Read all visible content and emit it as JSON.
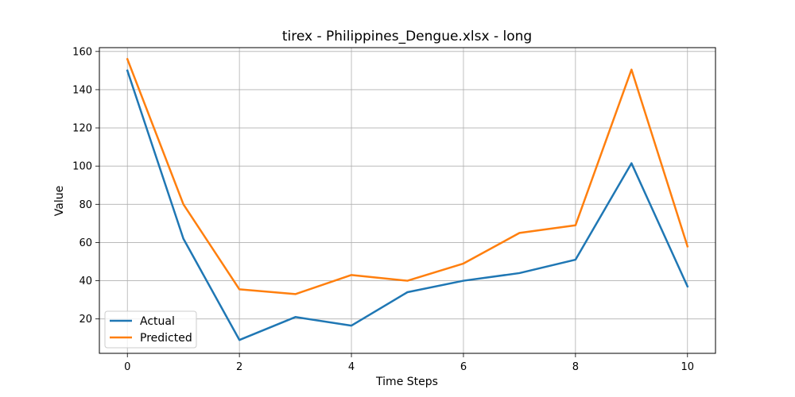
{
  "chart_data": {
    "type": "line",
    "title": "tirex - Philippines_Dengue.xlsx - long",
    "xlabel": "Time Steps",
    "ylabel": "Value",
    "x": [
      0,
      1,
      2,
      3,
      4,
      5,
      6,
      7,
      8,
      9,
      10
    ],
    "xlim": [
      -0.5,
      10.5
    ],
    "ylim": [
      2,
      162
    ],
    "xticks": [
      0,
      2,
      4,
      6,
      8,
      10
    ],
    "yticks": [
      20,
      40,
      60,
      80,
      100,
      120,
      140,
      160
    ],
    "grid": true,
    "legend_position": "lower-left",
    "series": [
      {
        "name": "Actual",
        "color": "#1f77b4",
        "values": [
          150,
          62,
          9,
          21,
          16.5,
          34,
          40,
          44,
          51,
          101.5,
          37
        ]
      },
      {
        "name": "Predicted",
        "color": "#ff7f0e",
        "values": [
          156,
          80,
          35.5,
          33,
          43,
          40,
          49,
          65,
          69,
          150.5,
          58
        ]
      }
    ]
  }
}
